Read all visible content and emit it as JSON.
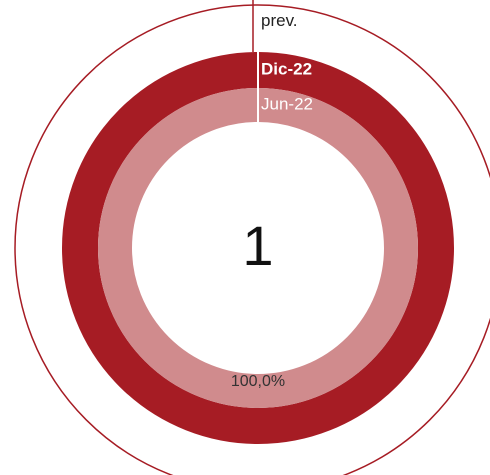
{
  "chart_data": {
    "type": "donut",
    "center_label": "1",
    "series": [
      {
        "name": "prev.",
        "color": "#ffffff",
        "values": [
          100
        ]
      },
      {
        "name": "Dic-22",
        "color": "#a61c24",
        "values": [
          100
        ]
      },
      {
        "name": "Jun-22",
        "color": "#d08b8d",
        "values": [
          100
        ],
        "value_labels": [
          "100,0%"
        ]
      }
    ]
  }
}
